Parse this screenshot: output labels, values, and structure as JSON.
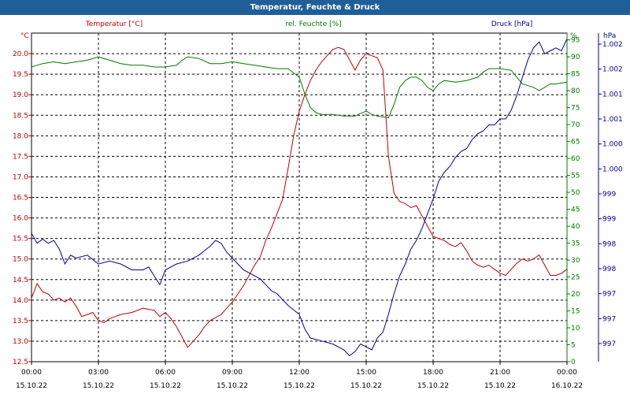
{
  "window": {
    "title": "Temperatur, Feuchte & Druck"
  },
  "chart_data": {
    "type": "line",
    "title": "Temperatur, Feuchte & Druck",
    "colors": {
      "temperature": "#c00000",
      "humidity": "#007a00",
      "pressure": "#00009a",
      "grid": "#000000"
    },
    "grid": true,
    "x_ticks": [
      {
        "time": "00:00",
        "date": "15.10.22"
      },
      {
        "time": "03:00",
        "date": "15.10.22"
      },
      {
        "time": "06:00",
        "date": "15.10.22"
      },
      {
        "time": "09:00",
        "date": "15.10.22"
      },
      {
        "time": "12:00",
        "date": "15.10.22"
      },
      {
        "time": "15:00",
        "date": "15.10.22"
      },
      {
        "time": "18:00",
        "date": "15.10.22"
      },
      {
        "time": "21:00",
        "date": "15.10.22"
      },
      {
        "time": "00:00",
        "date": "16.10.22"
      }
    ],
    "x_hours": [
      0,
      24
    ],
    "axes": {
      "temperature": {
        "label": "Temperatur [°C]",
        "unit": "°C",
        "range": [
          12.5,
          20.5
        ],
        "ticks": [
          "12.5",
          "13.0",
          "13.5",
          "14.0",
          "14.5",
          "15.0",
          "15.5",
          "16.0",
          "16.5",
          "17.0",
          "17.5",
          "18.0",
          "18.5",
          "19.0",
          "19.5",
          "20.0"
        ]
      },
      "humidity": {
        "label": "rel. Feuchte [%]",
        "unit": "%",
        "range": [
          0,
          97
        ],
        "ticks": [
          "0",
          "5",
          "10",
          "15",
          "20",
          "25",
          "30",
          "35",
          "40",
          "45",
          "50",
          "55",
          "60",
          "65",
          "70",
          "75",
          "80",
          "85",
          "90",
          "95"
        ]
      },
      "pressure": {
        "label": "Druck [hPa]",
        "unit": "hPa",
        "range": [
          996.65,
          1002.2
        ],
        "ticks": [
          "997",
          "997",
          "997",
          "998",
          "998",
          "999",
          "999",
          "1.000",
          "1.000",
          "1.001",
          "1.001",
          "1.002",
          "1.002"
        ]
      }
    },
    "series": [
      {
        "key": "temperature",
        "name": "Temperatur [°C]",
        "points": [
          [
            0,
            14.05
          ],
          [
            0.25,
            14.4
          ],
          [
            0.5,
            14.2
          ],
          [
            0.75,
            14.15
          ],
          [
            1,
            14.0
          ],
          [
            1.25,
            14.05
          ],
          [
            1.5,
            13.95
          ],
          [
            1.75,
            14.05
          ],
          [
            2,
            13.85
          ],
          [
            2.25,
            13.6
          ],
          [
            2.5,
            13.65
          ],
          [
            2.75,
            13.7
          ],
          [
            3,
            13.5
          ],
          [
            3.25,
            13.45
          ],
          [
            3.5,
            13.55
          ],
          [
            3.75,
            13.6
          ],
          [
            4,
            13.65
          ],
          [
            4.5,
            13.7
          ],
          [
            5,
            13.8
          ],
          [
            5.5,
            13.75
          ],
          [
            5.75,
            13.6
          ],
          [
            6,
            13.7
          ],
          [
            6.25,
            13.55
          ],
          [
            6.5,
            13.35
          ],
          [
            6.75,
            13.1
          ],
          [
            7,
            12.85
          ],
          [
            7.25,
            13.0
          ],
          [
            7.5,
            13.15
          ],
          [
            7.75,
            13.35
          ],
          [
            8,
            13.5
          ],
          [
            8.5,
            13.65
          ],
          [
            8.75,
            13.8
          ],
          [
            9,
            13.95
          ],
          [
            9.25,
            14.15
          ],
          [
            9.5,
            14.35
          ],
          [
            9.75,
            14.6
          ],
          [
            10,
            14.85
          ],
          [
            10.25,
            15.05
          ],
          [
            10.5,
            15.45
          ],
          [
            10.75,
            15.75
          ],
          [
            11,
            16.1
          ],
          [
            11.25,
            16.45
          ],
          [
            11.5,
            17.2
          ],
          [
            11.75,
            18.0
          ],
          [
            12,
            18.6
          ],
          [
            12.25,
            19.0
          ],
          [
            12.5,
            19.35
          ],
          [
            12.75,
            19.6
          ],
          [
            13,
            19.8
          ],
          [
            13.25,
            19.95
          ],
          [
            13.5,
            20.1
          ],
          [
            13.75,
            20.15
          ],
          [
            14,
            20.1
          ],
          [
            14.25,
            19.85
          ],
          [
            14.5,
            19.6
          ],
          [
            14.75,
            19.85
          ],
          [
            15,
            20.0
          ],
          [
            15.25,
            19.95
          ],
          [
            15.5,
            19.9
          ],
          [
            15.75,
            19.6
          ],
          [
            16,
            17.5
          ],
          [
            16.25,
            16.6
          ],
          [
            16.5,
            16.4
          ],
          [
            16.75,
            16.35
          ],
          [
            17,
            16.25
          ],
          [
            17.25,
            16.3
          ],
          [
            17.5,
            16.05
          ],
          [
            17.75,
            15.8
          ],
          [
            18,
            15.55
          ],
          [
            18.25,
            15.5
          ],
          [
            18.5,
            15.45
          ],
          [
            18.75,
            15.35
          ],
          [
            19,
            15.3
          ],
          [
            19.25,
            15.4
          ],
          [
            19.5,
            15.2
          ],
          [
            19.75,
            14.95
          ],
          [
            20,
            14.85
          ],
          [
            20.25,
            14.8
          ],
          [
            20.5,
            14.85
          ],
          [
            20.75,
            14.75
          ],
          [
            21,
            14.65
          ],
          [
            21.25,
            14.6
          ],
          [
            21.5,
            14.75
          ],
          [
            21.75,
            14.9
          ],
          [
            22,
            15.0
          ],
          [
            22.25,
            14.95
          ],
          [
            22.5,
            15.0
          ],
          [
            22.75,
            15.1
          ],
          [
            23,
            14.85
          ],
          [
            23.25,
            14.6
          ],
          [
            23.5,
            14.6
          ],
          [
            23.75,
            14.65
          ],
          [
            24,
            14.75
          ]
        ]
      },
      {
        "key": "humidity",
        "name": "rel. Feuchte [%]",
        "points": [
          [
            0,
            87
          ],
          [
            0.5,
            88
          ],
          [
            1,
            88.5
          ],
          [
            1.5,
            88
          ],
          [
            2,
            88.5
          ],
          [
            2.5,
            89
          ],
          [
            3,
            90
          ],
          [
            3.5,
            89
          ],
          [
            4,
            88
          ],
          [
            4.5,
            87.5
          ],
          [
            5,
            87.5
          ],
          [
            5.5,
            87
          ],
          [
            6,
            87
          ],
          [
            6.5,
            87.5
          ],
          [
            6.75,
            89
          ],
          [
            7,
            90
          ],
          [
            7.5,
            89.5
          ],
          [
            8,
            88
          ],
          [
            8.5,
            88
          ],
          [
            9,
            88.5
          ],
          [
            9.5,
            88
          ],
          [
            10,
            87.5
          ],
          [
            10.5,
            87
          ],
          [
            11,
            86.5
          ],
          [
            11.5,
            86.5
          ],
          [
            12,
            84
          ],
          [
            12.25,
            79
          ],
          [
            12.5,
            75
          ],
          [
            12.75,
            73.5
          ],
          [
            13,
            73
          ],
          [
            13.5,
            73
          ],
          [
            14,
            72.5
          ],
          [
            14.5,
            72.5
          ],
          [
            15,
            74
          ],
          [
            15.25,
            73
          ],
          [
            15.5,
            72.5
          ],
          [
            16,
            72
          ],
          [
            16.25,
            76
          ],
          [
            16.5,
            81
          ],
          [
            16.75,
            83
          ],
          [
            17,
            84
          ],
          [
            17.25,
            84
          ],
          [
            17.5,
            83
          ],
          [
            17.75,
            81
          ],
          [
            18,
            80
          ],
          [
            18.25,
            82
          ],
          [
            18.5,
            83
          ],
          [
            19,
            82.5
          ],
          [
            19.5,
            83
          ],
          [
            20,
            84
          ],
          [
            20.25,
            85.5
          ],
          [
            20.5,
            86.5
          ],
          [
            21,
            86.5
          ],
          [
            21.5,
            86
          ],
          [
            21.75,
            84
          ],
          [
            22,
            82
          ],
          [
            22.5,
            81
          ],
          [
            22.75,
            80
          ],
          [
            23,
            81
          ],
          [
            23.25,
            82
          ],
          [
            23.5,
            82
          ],
          [
            24,
            82.5
          ]
        ]
      },
      {
        "key": "pressure",
        "name": "Druck [hPa]",
        "points": [
          [
            0,
            998.82
          ],
          [
            0.25,
            998.65
          ],
          [
            0.5,
            998.72
          ],
          [
            0.75,
            998.65
          ],
          [
            1,
            998.7
          ],
          [
            1.25,
            998.55
          ],
          [
            1.5,
            998.3
          ],
          [
            1.75,
            998.45
          ],
          [
            2,
            998.4
          ],
          [
            2.5,
            998.45
          ],
          [
            3,
            998.3
          ],
          [
            3.5,
            998.35
          ],
          [
            4,
            998.3
          ],
          [
            4.5,
            998.2
          ],
          [
            5,
            998.2
          ],
          [
            5.25,
            998.25
          ],
          [
            5.5,
            998.1
          ],
          [
            5.75,
            997.95
          ],
          [
            6,
            998.2
          ],
          [
            6.5,
            998.3
          ],
          [
            7,
            998.35
          ],
          [
            7.5,
            998.45
          ],
          [
            8,
            998.6
          ],
          [
            8.25,
            998.7
          ],
          [
            8.5,
            998.65
          ],
          [
            8.75,
            998.5
          ],
          [
            9,
            998.4
          ],
          [
            9.25,
            998.3
          ],
          [
            9.5,
            998.2
          ],
          [
            10,
            998.1
          ],
          [
            10.25,
            998.05
          ],
          [
            10.5,
            997.95
          ],
          [
            10.75,
            997.85
          ],
          [
            11,
            997.8
          ],
          [
            11.5,
            997.6
          ],
          [
            12,
            997.45
          ],
          [
            12.25,
            997.2
          ],
          [
            12.5,
            997.05
          ],
          [
            13,
            997.0
          ],
          [
            13.5,
            996.95
          ],
          [
            14,
            996.85
          ],
          [
            14.25,
            996.75
          ],
          [
            14.5,
            996.82
          ],
          [
            14.75,
            996.95
          ],
          [
            15,
            996.9
          ],
          [
            15.25,
            996.85
          ],
          [
            15.5,
            997.05
          ],
          [
            15.75,
            997.15
          ],
          [
            16,
            997.45
          ],
          [
            16.25,
            997.8
          ],
          [
            16.5,
            998.1
          ],
          [
            16.75,
            998.3
          ],
          [
            17,
            998.55
          ],
          [
            17.25,
            998.7
          ],
          [
            17.5,
            998.9
          ],
          [
            17.75,
            999.15
          ],
          [
            18,
            999.4
          ],
          [
            18.25,
            999.7
          ],
          [
            18.5,
            999.85
          ],
          [
            18.75,
            999.95
          ],
          [
            19,
            1000.1
          ],
          [
            19.25,
            1000.2
          ],
          [
            19.5,
            1000.25
          ],
          [
            19.75,
            1000.4
          ],
          [
            20,
            1000.5
          ],
          [
            20.25,
            1000.55
          ],
          [
            20.5,
            1000.65
          ],
          [
            20.75,
            1000.65
          ],
          [
            21,
            1000.75
          ],
          [
            21.25,
            1000.75
          ],
          [
            21.5,
            1000.9
          ],
          [
            21.75,
            1001.15
          ],
          [
            22,
            1001.45
          ],
          [
            22.25,
            1001.75
          ],
          [
            22.5,
            1001.95
          ],
          [
            22.75,
            1002.05
          ],
          [
            23,
            1001.85
          ],
          [
            23.25,
            1001.9
          ],
          [
            23.5,
            1001.95
          ],
          [
            23.75,
            1001.9
          ],
          [
            24,
            1002.1
          ]
        ]
      }
    ]
  }
}
